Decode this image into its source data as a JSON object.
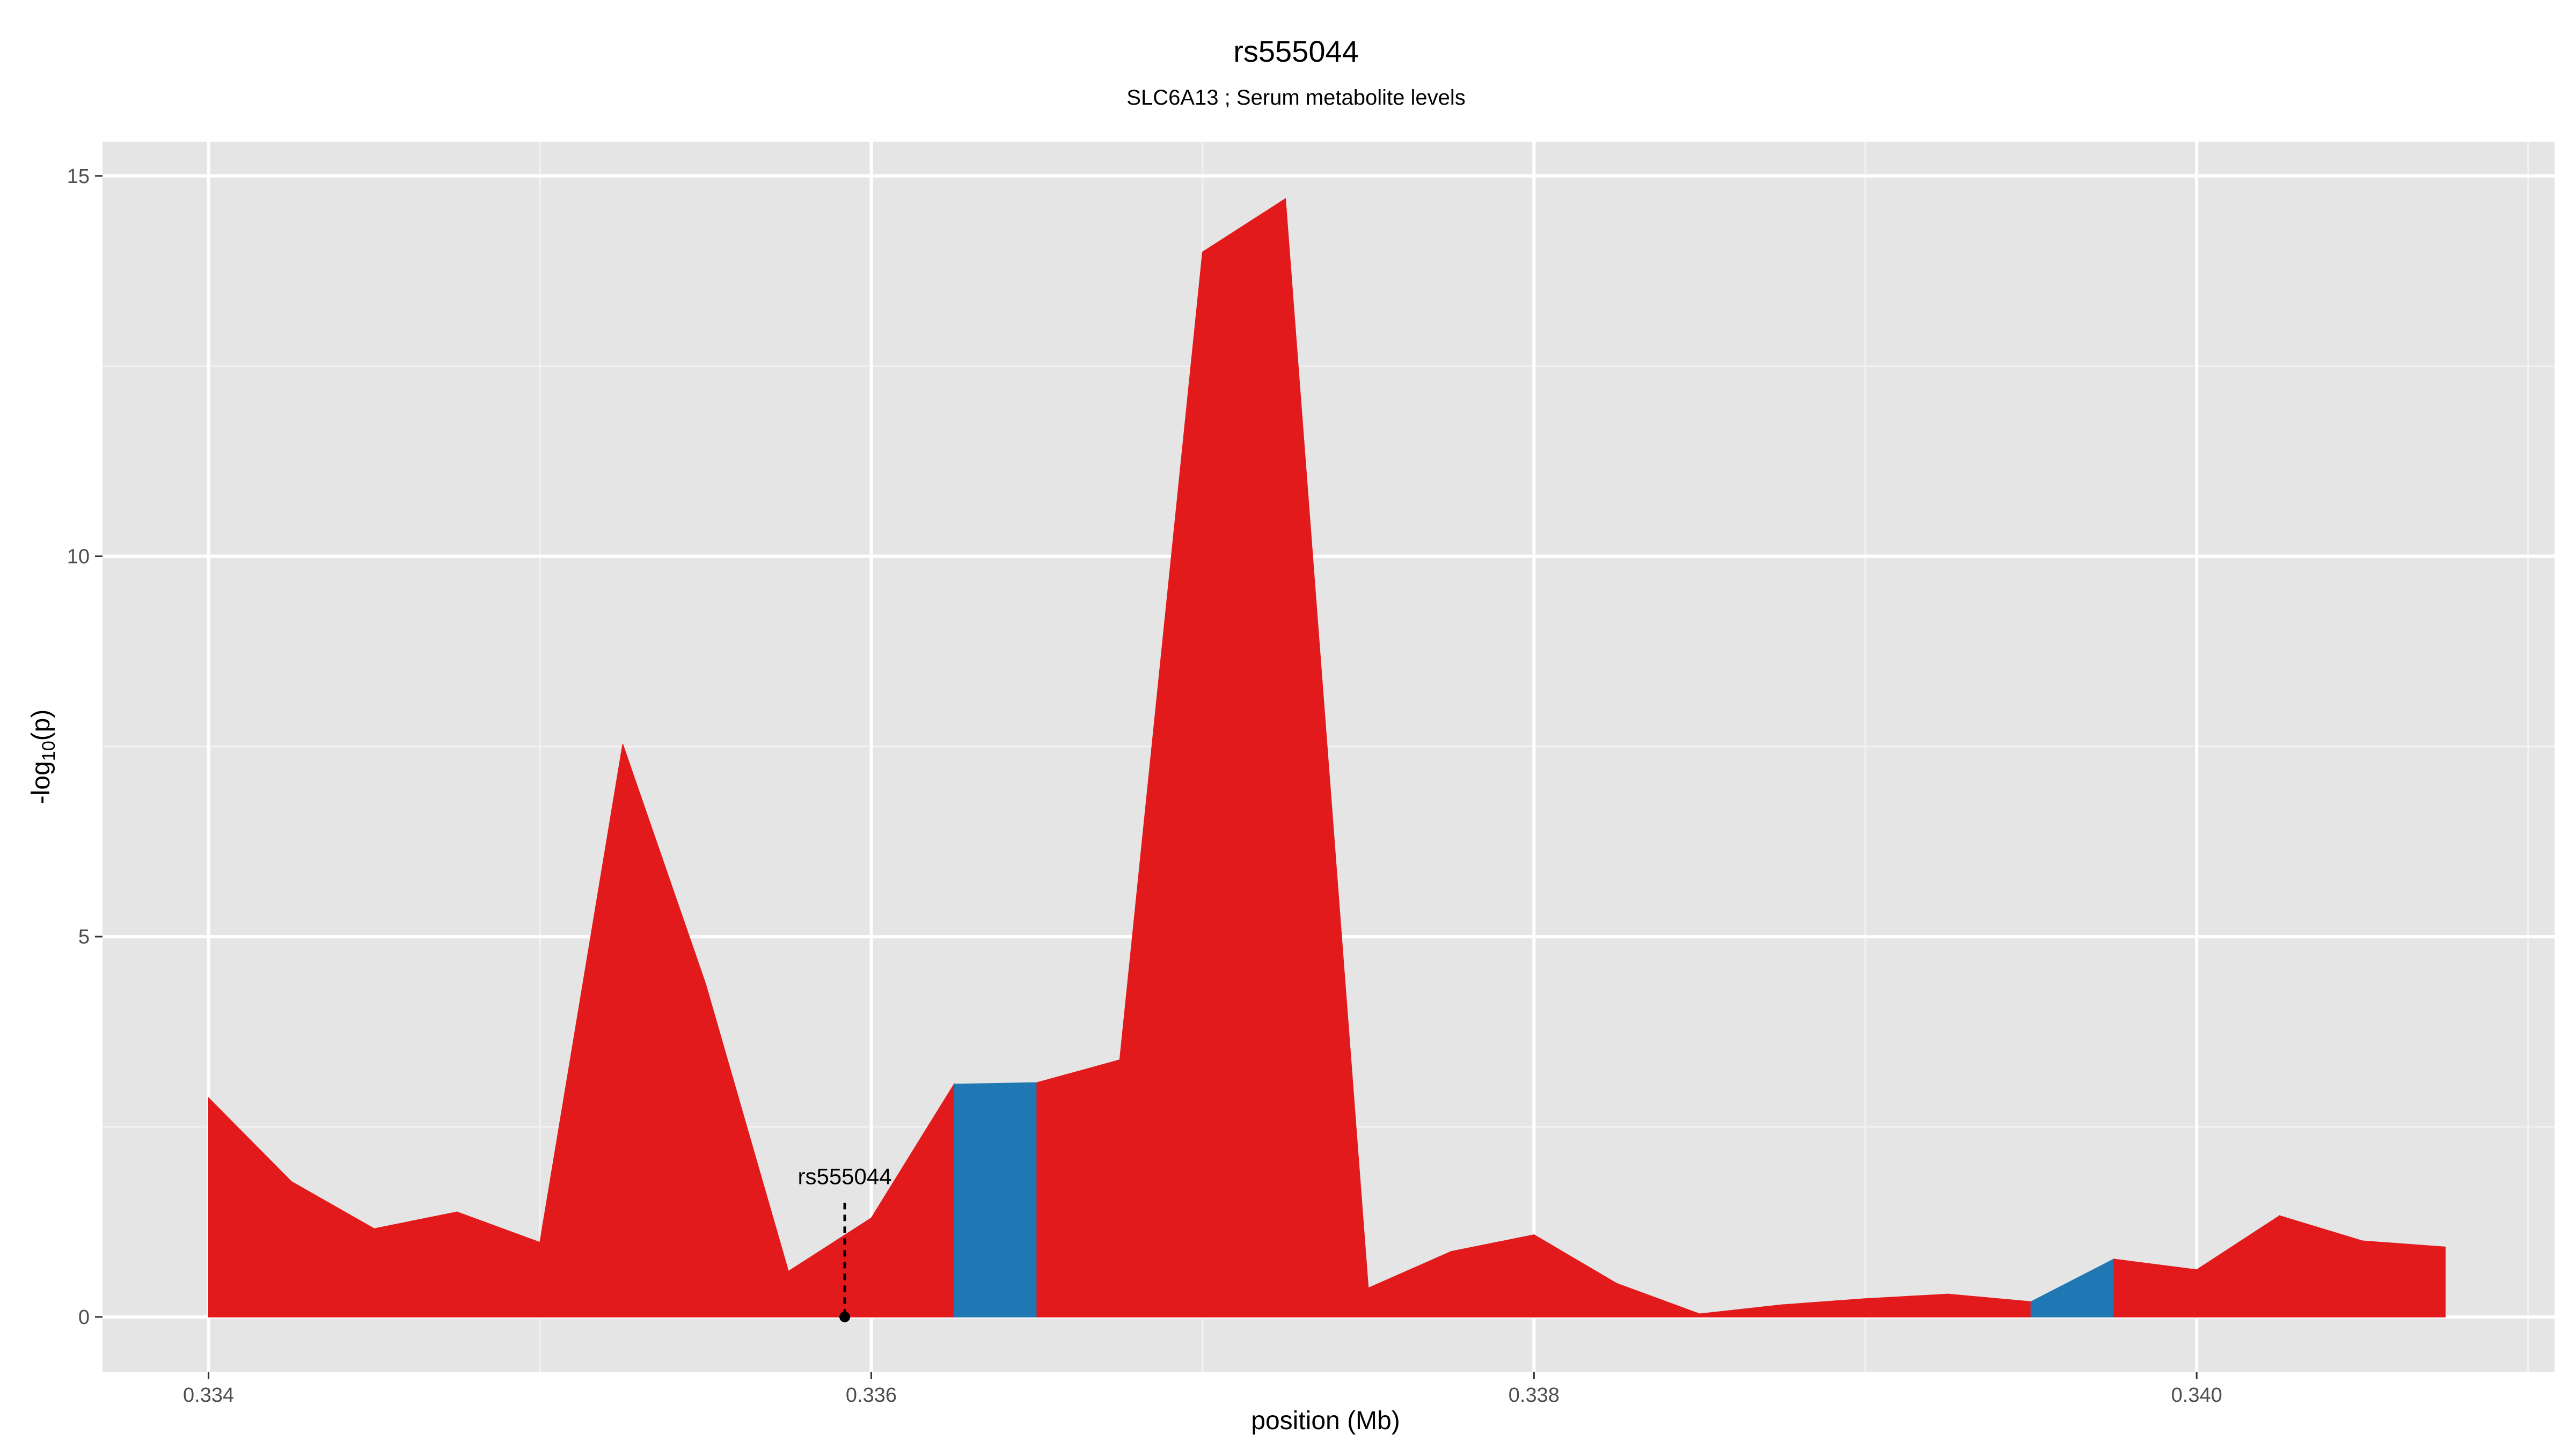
{
  "chart_data": {
    "type": "area",
    "title": "rs555044",
    "subtitle": "SLC6A13 ; Serum metabolite levels",
    "xlabel": "position (Mb)",
    "ylabel_main": "-log",
    "ylabel_sub": "10",
    "ylabel_tail": "(p)",
    "xlim": [
      0.33368,
      0.34108
    ],
    "ylim": [
      -0.72,
      15.45
    ],
    "x_ticks": [
      0.334,
      0.336,
      0.338,
      0.34
    ],
    "x_tick_labels": [
      "0.334",
      "0.336",
      "0.338",
      "0.340"
    ],
    "y_ticks": [
      0,
      5,
      10,
      15
    ],
    "y_tick_labels": [
      "0",
      "5",
      "10",
      "15"
    ],
    "grid": true,
    "colors": {
      "panel": "#e5e5e5",
      "grid_major": "#ffffff",
      "red": "#e31a1c",
      "blue": "#1f78b4"
    },
    "x": [
      0.334,
      0.33425,
      0.3345,
      0.33475,
      0.335,
      0.33525,
      0.3355,
      0.33575,
      0.336,
      0.33625,
      0.3365,
      0.33675,
      0.337,
      0.33725,
      0.3375,
      0.33775,
      0.338,
      0.33825,
      0.3385,
      0.33875,
      0.339,
      0.33925,
      0.3395,
      0.33975,
      0.34,
      0.34025,
      0.3405,
      0.34075
    ],
    "y": [
      2.88,
      1.78,
      1.16,
      1.38,
      0.98,
      7.53,
      4.38,
      0.6,
      1.3,
      3.06,
      3.08,
      3.38,
      14.0,
      14.7,
      0.38,
      0.86,
      1.08,
      0.44,
      0.04,
      0.16,
      0.24,
      0.3,
      0.2,
      0.76,
      0.62,
      1.33,
      1.0,
      0.92
    ],
    "segment_colors": [
      "red",
      "red",
      "red",
      "red",
      "red",
      "red",
      "red",
      "red",
      "red",
      "blue",
      "red",
      "red",
      "red",
      "red",
      "red",
      "red",
      "red",
      "red",
      "red",
      "red",
      "red",
      "red",
      "blue",
      "red",
      "red",
      "red",
      "red"
    ],
    "annotation": {
      "label": "rs555044",
      "x": 0.33592,
      "y_top": 1.5
    }
  }
}
